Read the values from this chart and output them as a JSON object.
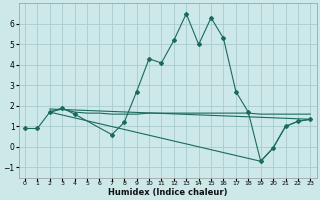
{
  "background_color": "#cce8e8",
  "grid_color": "#aacccc",
  "line_color": "#1a6b5a",
  "xlabel": "Humidex (Indice chaleur)",
  "xlim": [
    -0.5,
    23.5
  ],
  "ylim": [
    -1.5,
    7.0
  ],
  "xticks": [
    0,
    1,
    2,
    3,
    4,
    5,
    6,
    7,
    8,
    9,
    10,
    11,
    12,
    13,
    14,
    15,
    16,
    17,
    18,
    19,
    20,
    21,
    22,
    23
  ],
  "yticks": [
    -1,
    0,
    1,
    2,
    3,
    4,
    5,
    6
  ],
  "line1_x": [
    0,
    1,
    2,
    3,
    4,
    7,
    8,
    9,
    10,
    11,
    12,
    13,
    14,
    15,
    16,
    17,
    18,
    19,
    20,
    21,
    22,
    23
  ],
  "line1_y": [
    0.9,
    0.9,
    1.7,
    1.9,
    1.6,
    0.6,
    1.2,
    2.7,
    4.3,
    4.1,
    5.2,
    6.5,
    5.0,
    6.3,
    5.3,
    2.7,
    1.7,
    -0.7,
    -0.05,
    1.0,
    1.25,
    1.35
  ],
  "line2_x": [
    2,
    3,
    4,
    5,
    6,
    7,
    8,
    9,
    10,
    11,
    12,
    13,
    14,
    15,
    16,
    17,
    18,
    19,
    20,
    21,
    22,
    23
  ],
  "line2_y": [
    1.7,
    1.85,
    1.7,
    1.65,
    1.65,
    1.6,
    1.6,
    1.6,
    1.65,
    1.65,
    1.65,
    1.65,
    1.65,
    1.65,
    1.65,
    1.65,
    1.65,
    1.6,
    1.6,
    1.6,
    1.6,
    1.6
  ],
  "line3_x": [
    2,
    23
  ],
  "line3_y": [
    1.85,
    1.35
  ],
  "line4_x": [
    2,
    19,
    20,
    21,
    22,
    23
  ],
  "line4_y": [
    1.7,
    -0.7,
    -0.05,
    1.0,
    1.25,
    1.35
  ]
}
